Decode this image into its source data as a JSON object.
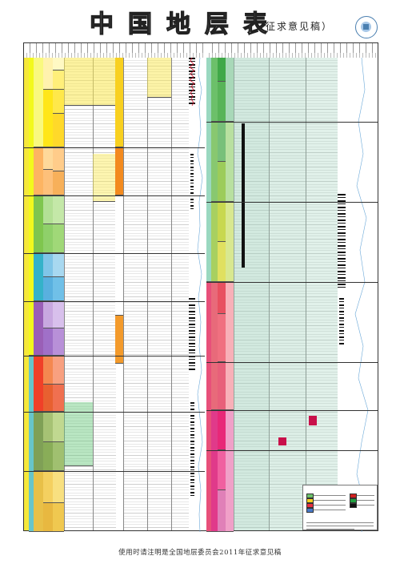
{
  "header": {
    "title": "中国地层表",
    "subtitle": "（征求意见稿）"
  },
  "logo": {
    "icon": "cnc-stratigraphy-logo-icon"
  },
  "footer": {
    "text": "使用时请注明是全国地层委员会2011年征求意见稿"
  },
  "colors": {
    "yellow": "#f6e83a",
    "orange": "#f39a2b",
    "light_green": "#9dd45a",
    "blue": "#5cb8e8",
    "purple": "#a874c8",
    "red": "#e8502a",
    "olive": "#8ab04a",
    "teal": "#9bcfb8",
    "pink": "#e8588a",
    "magenta": "#d42876"
  }
}
